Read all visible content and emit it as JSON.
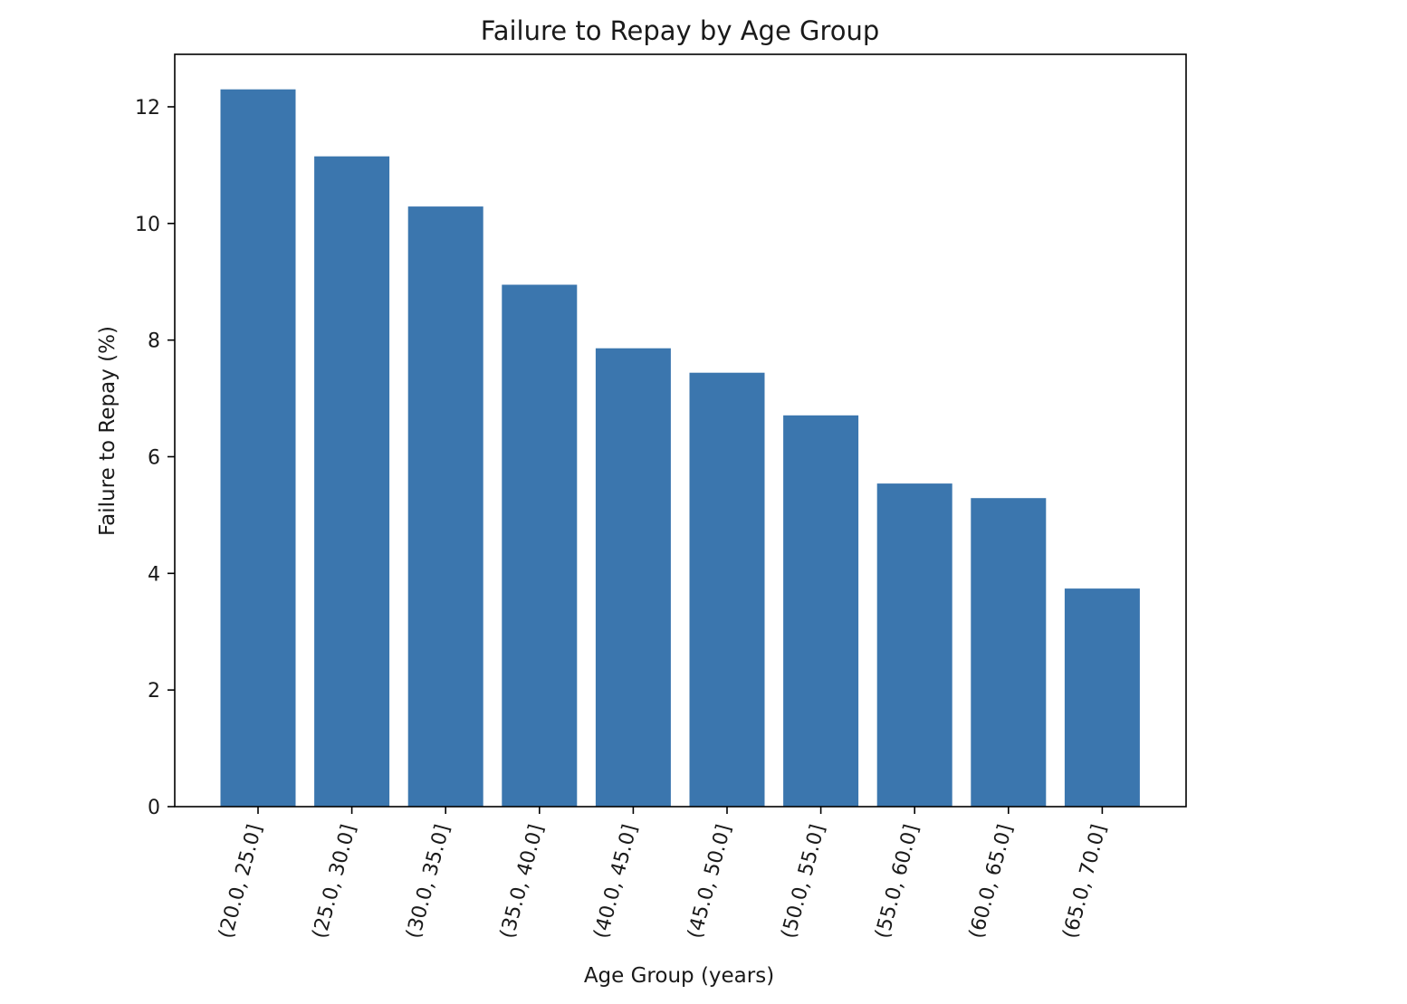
{
  "chart_data": {
    "type": "bar",
    "title": "Failure to Repay by Age Group",
    "xlabel": "Age Group (years)",
    "ylabel": "Failure to Repay (%)",
    "categories": [
      "(20.0, 25.0]",
      "(25.0, 30.0]",
      "(30.0, 35.0]",
      "(35.0, 40.0]",
      "(40.0, 45.0]",
      "(45.0, 50.0]",
      "(50.0, 55.0]",
      "(55.0, 60.0]",
      "(60.0, 65.0]",
      "(65.0, 70.0]"
    ],
    "values": [
      12.3,
      11.15,
      10.29,
      8.95,
      7.86,
      7.44,
      6.71,
      5.54,
      5.29,
      3.74
    ],
    "ylim": [
      0,
      12.9
    ],
    "yticks": [
      0,
      2,
      4,
      6,
      8,
      10,
      12
    ],
    "bar_color": "#3b76ae",
    "grid": false,
    "legend": "none"
  }
}
